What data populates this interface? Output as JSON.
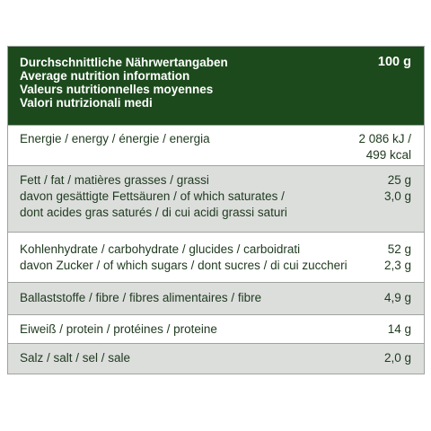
{
  "header": {
    "lines": [
      "Durchschnittliche Nährwertangaben",
      "Average nutrition information",
      "Valeurs nutritionnelles moyennes",
      "Valori nutrizionali medi"
    ],
    "amount": "100 g"
  },
  "rows": [
    {
      "labels": [
        "Energie / energy / énergie / energia"
      ],
      "values": [
        "2 086 kJ /",
        "499 kcal"
      ]
    },
    {
      "labels": [
        "Fett / fat / matières grasses / grassi",
        "davon gesättigte Fettsäuren / of which saturates /",
        "dont acides gras saturés / di cui acidi grassi saturi"
      ],
      "values": [
        "25 g",
        "3,0 g"
      ]
    },
    {
      "labels": [
        "Kohlenhydrate / carbohydrate / glucides / carboidrati",
        "davon Zucker / of which sugars / dont sucres / di cui zuccheri"
      ],
      "values": [
        "52 g",
        "2,3 g"
      ]
    },
    {
      "labels": [
        "Ballaststoffe / fibre / fibres alimentaires / fibre"
      ],
      "values": [
        "4,9 g"
      ]
    },
    {
      "labels": [
        "Eiweiß / protein / protéines / proteine"
      ],
      "values": [
        "14 g"
      ]
    },
    {
      "labels": [
        "Salz / salt / sel / sale"
      ],
      "values": [
        "2,0 g"
      ]
    }
  ]
}
